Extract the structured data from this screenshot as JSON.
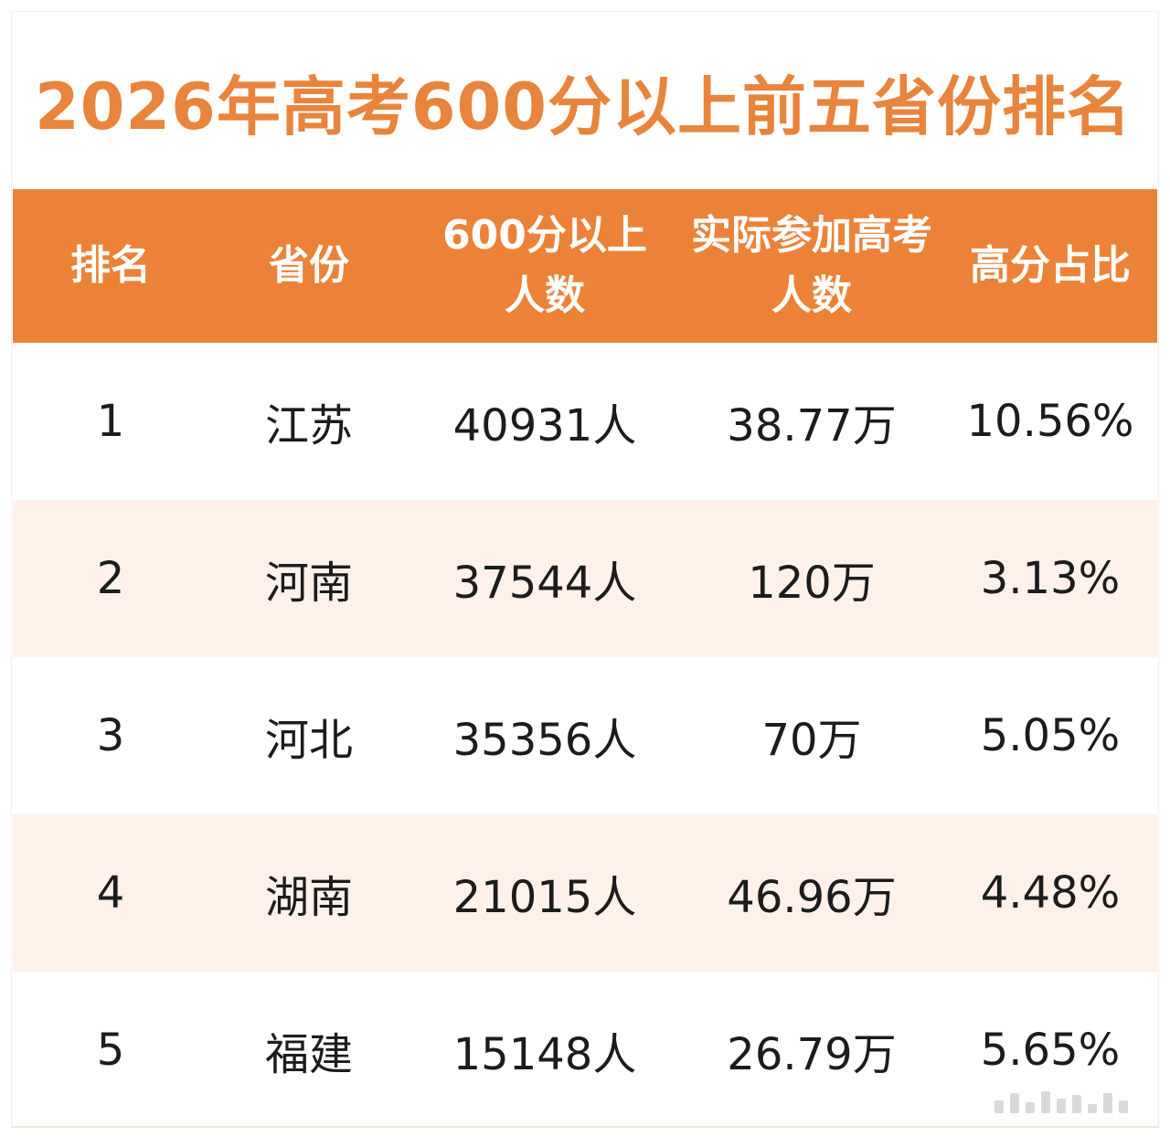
{
  "colors": {
    "title": "#e8843b",
    "header_bg": "#ec8238",
    "band_bg": "#fdf1ea",
    "row_bg": "#ffffff"
  },
  "chart_data": {
    "type": "table",
    "title": "2026年高考600分以上前五省份排名",
    "columns": [
      {
        "lines": [
          "排名"
        ]
      },
      {
        "lines": [
          "省份"
        ]
      },
      {
        "lines": [
          "600分以上",
          "人数"
        ]
      },
      {
        "lines": [
          "实际参加高考",
          "人数"
        ]
      },
      {
        "lines": [
          "高分占比"
        ]
      }
    ],
    "rows": [
      [
        "1",
        "江苏",
        "40931人",
        "38.77万",
        "10.56%"
      ],
      [
        "2",
        "河南",
        "37544人",
        "120万",
        "3.13%"
      ],
      [
        "3",
        "河北",
        "35356人",
        "70万",
        "5.05%"
      ],
      [
        "4",
        "湖南",
        "21015人",
        "46.96万",
        "4.48%"
      ],
      [
        "5",
        "福建",
        "15148人",
        "26.79万",
        "5.65%"
      ]
    ]
  }
}
